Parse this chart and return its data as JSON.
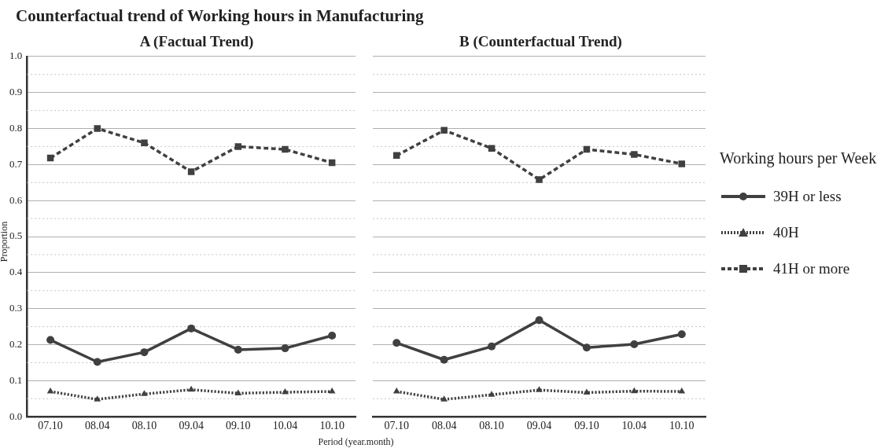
{
  "chart_data": [
    {
      "type": "line",
      "title": "Counterfactual trend of Working hours in Manufacturing",
      "subtitle": "A (Factual Trend)",
      "xlabel": "Period (year.month)",
      "ylabel": "Proportion",
      "categories": [
        "07.10",
        "08.04",
        "08.10",
        "09.04",
        "09.10",
        "10.04",
        "10.10"
      ],
      "series": [
        {
          "name": "39H or less",
          "color": "#404040",
          "marker": "circle",
          "line_style": "solid",
          "values": [
            0.213,
            0.152,
            0.179,
            0.245,
            0.186,
            0.19,
            0.225
          ]
        },
        {
          "name": "40H",
          "color": "#404040",
          "marker": "triangle",
          "line_style": "dotted",
          "values": [
            0.07,
            0.048,
            0.063,
            0.075,
            0.065,
            0.068,
            0.07
          ]
        },
        {
          "name": "41H or more",
          "color": "#404040",
          "marker": "square",
          "line_style": "dashed",
          "values": [
            0.718,
            0.8,
            0.76,
            0.68,
            0.75,
            0.742,
            0.705
          ]
        }
      ],
      "ylim": [
        0,
        1
      ],
      "yticks": [
        {
          "value": 0,
          "label": "0.0"
        },
        {
          "value": 0.05,
          "label": null
        },
        0.1,
        {
          "value": 0.15,
          "label": null
        },
        0.2,
        {
          "value": 0.25,
          "label": null
        },
        0.3,
        {
          "value": 0.35,
          "label": null
        },
        0.4,
        {
          "value": 0.45,
          "label": null
        },
        0.5,
        {
          "value": 0.55,
          "label": null
        },
        0.6,
        {
          "value": 0.65,
          "label": null
        },
        0.7,
        {
          "value": 0.75,
          "label": null
        },
        0.8,
        {
          "value": 0.85,
          "label": null
        },
        0.9,
        {
          "value": 0.95,
          "label": null
        },
        {
          "value": 1,
          "label": "1.0"
        }
      ],
      "grid": "y",
      "legend": "right",
      "legend_title": "Working hours per Week"
    },
    {
      "type": "line",
      "subtitle": "B (Counterfactual Trend)",
      "categories": [
        "07.10",
        "08.04",
        "08.10",
        "09.04",
        "09.10",
        "10.04",
        "10.10"
      ],
      "series": [
        {
          "color": "#404040",
          "marker": "circle",
          "line_style": "solid",
          "values": [
            0.205,
            0.158,
            0.195,
            0.268,
            0.192,
            0.201,
            0.229
          ]
        },
        {
          "color": "#404040",
          "marker": "triangle",
          "line_style": "dotted",
          "values": [
            0.07,
            0.048,
            0.061,
            0.074,
            0.067,
            0.071,
            0.07
          ]
        },
        {
          "color": "#404040",
          "marker": "square",
          "line_style": "dashed",
          "values": [
            0.725,
            0.795,
            0.745,
            0.658,
            0.742,
            0.728,
            0.702
          ]
        }
      ],
      "ylim": [
        0,
        1
      ],
      "yticks": [
        0,
        {
          "value": 0.05,
          "label": null
        },
        0.1,
        {
          "value": 0.15,
          "label": null
        },
        0.2,
        {
          "value": 0.25,
          "label": null
        },
        0.3,
        {
          "value": 0.35,
          "label": null
        },
        0.4,
        {
          "value": 0.45,
          "label": null
        },
        0.5,
        {
          "value": 0.55,
          "label": null
        },
        0.6,
        {
          "value": 0.65,
          "label": null
        },
        0.7,
        {
          "value": 0.75,
          "label": null
        },
        0.8,
        {
          "value": 0.85,
          "label": null
        },
        0.9,
        {
          "value": 0.95,
          "label": null
        },
        1
      ],
      "grid": "y",
      "tick_labels": "x"
    }
  ]
}
